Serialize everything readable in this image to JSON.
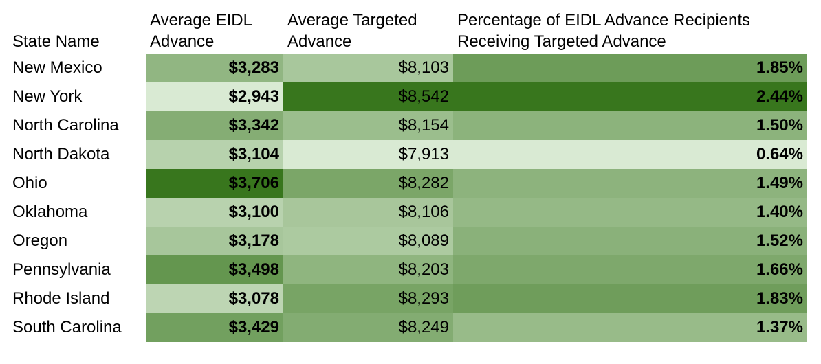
{
  "chart_data": {
    "type": "table",
    "columns": [
      "State Name",
      "Average EIDL Advance",
      "Average Targeted Advance",
      "Percentage of EIDL Advance Recipients Receiving Targeted Advance"
    ],
    "rows": [
      {
        "state": "New Mexico",
        "eidl": "$3,283",
        "targeted": "$8,103",
        "pct": "1.85%"
      },
      {
        "state": "New York",
        "eidl": "$2,943",
        "targeted": "$8,542",
        "pct": "2.44%"
      },
      {
        "state": "North Carolina",
        "eidl": "$3,342",
        "targeted": "$8,154",
        "pct": "1.50%"
      },
      {
        "state": "North Dakota",
        "eidl": "$3,104",
        "targeted": "$7,913",
        "pct": "0.64%"
      },
      {
        "state": "Ohio",
        "eidl": "$3,706",
        "targeted": "$8,282",
        "pct": "1.49%"
      },
      {
        "state": "Oklahoma",
        "eidl": "$3,100",
        "targeted": "$8,106",
        "pct": "1.40%"
      },
      {
        "state": "Oregon",
        "eidl": "$3,178",
        "targeted": "$8,089",
        "pct": "1.52%"
      },
      {
        "state": "Pennsylvania",
        "eidl": "$3,498",
        "targeted": "$8,203",
        "pct": "1.66%"
      },
      {
        "state": "Rhode Island",
        "eidl": "$3,078",
        "targeted": "$8,293",
        "pct": "1.83%"
      },
      {
        "state": "South Carolina",
        "eidl": "$3,429",
        "targeted": "$8,249",
        "pct": "1.37%"
      }
    ],
    "colors": {
      "low": "#d9ead3",
      "high": "#38761d"
    }
  }
}
